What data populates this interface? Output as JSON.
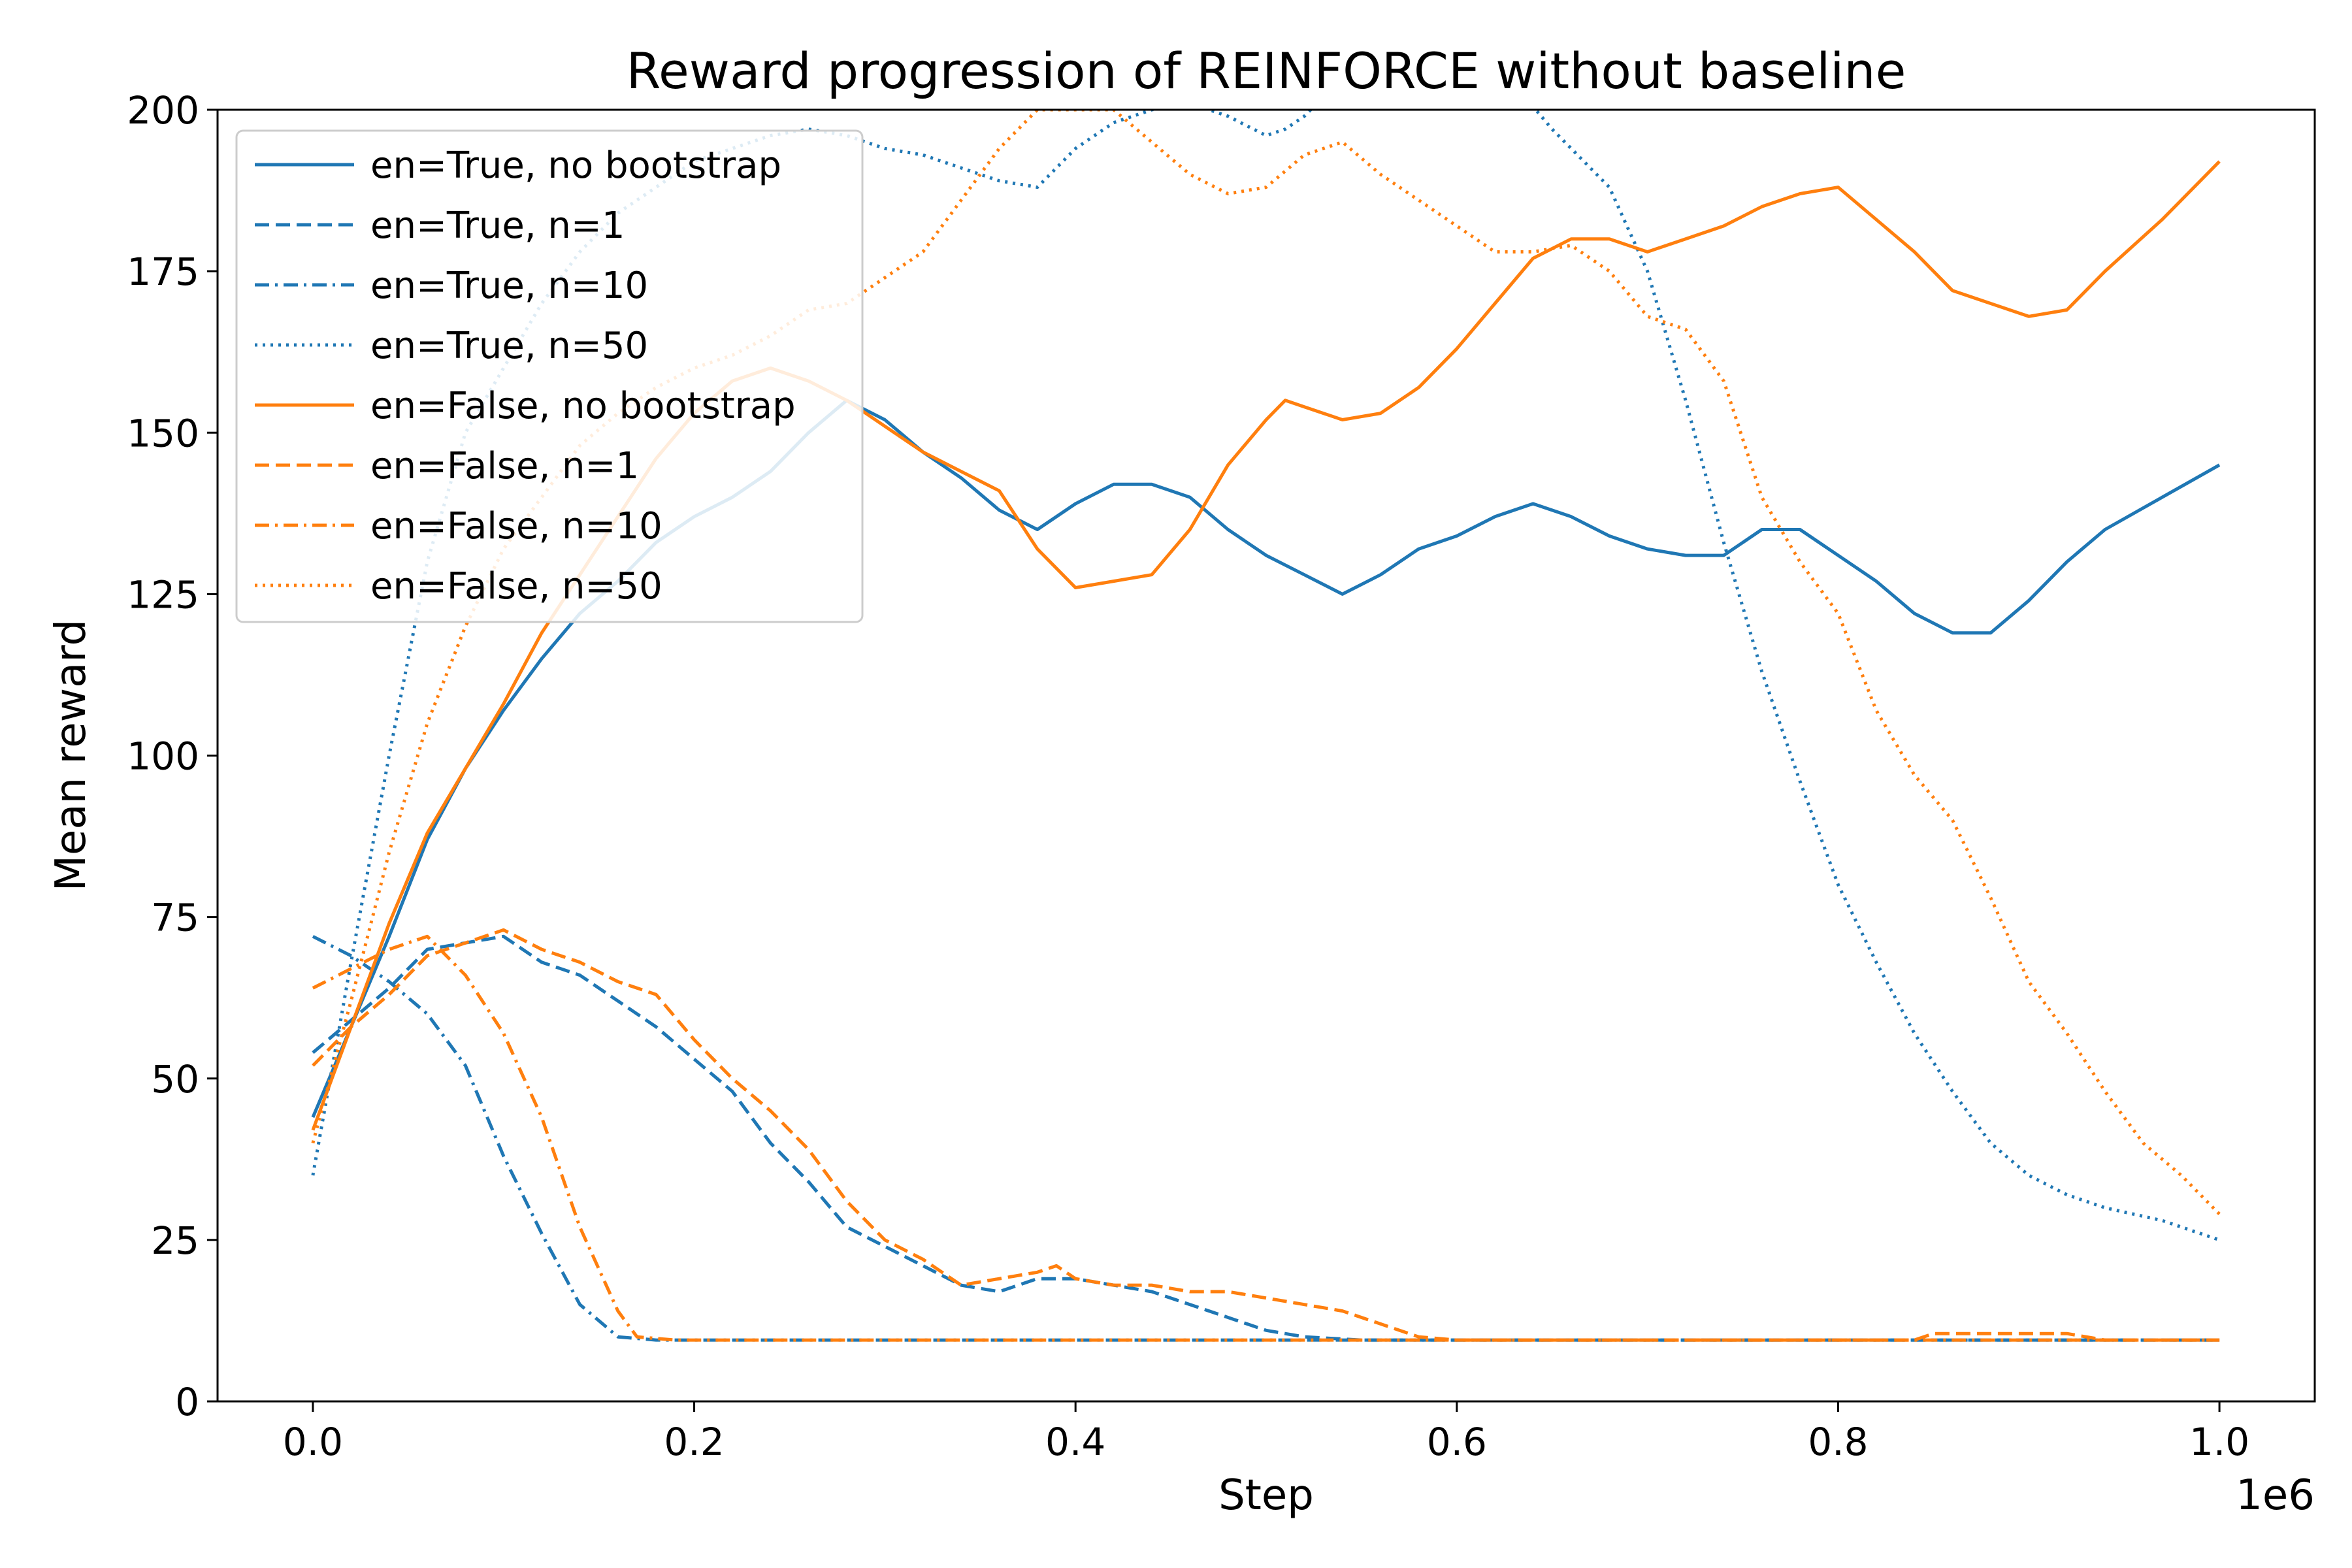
{
  "chart_data": {
    "type": "line",
    "title": "Reward progression of REINFORCE without baseline",
    "xlabel": "Step",
    "ylabel": "Mean reward",
    "x_offset_text": "1e6",
    "xlim": [
      -0.05,
      1.05
    ],
    "ylim": [
      0,
      200
    ],
    "xticks": [
      0.0,
      0.2,
      0.4,
      0.6,
      0.8,
      1.0
    ],
    "xtick_labels": [
      "0.0",
      "0.2",
      "0.4",
      "0.6",
      "0.8",
      "1.0"
    ],
    "yticks": [
      0,
      25,
      50,
      75,
      100,
      125,
      150,
      175,
      200
    ],
    "ytick_labels": [
      "0",
      "25",
      "50",
      "75",
      "100",
      "125",
      "150",
      "175",
      "200"
    ],
    "grid": false,
    "legend_position": "upper-left",
    "colors": {
      "blue": "#1f77b4",
      "orange": "#ff7f0e"
    },
    "series": [
      {
        "name": "en=True, no bootstrap",
        "color": "#1f77b4",
        "dash": "solid",
        "points": [
          [
            0.0,
            44
          ],
          [
            0.02,
            58
          ],
          [
            0.04,
            72
          ],
          [
            0.06,
            87
          ],
          [
            0.08,
            98
          ],
          [
            0.1,
            107
          ],
          [
            0.12,
            115
          ],
          [
            0.14,
            122
          ],
          [
            0.16,
            127
          ],
          [
            0.18,
            133
          ],
          [
            0.2,
            137
          ],
          [
            0.22,
            140
          ],
          [
            0.24,
            144
          ],
          [
            0.26,
            150
          ],
          [
            0.28,
            155
          ],
          [
            0.3,
            152
          ],
          [
            0.32,
            147
          ],
          [
            0.34,
            143
          ],
          [
            0.36,
            138
          ],
          [
            0.38,
            135
          ],
          [
            0.4,
            139
          ],
          [
            0.42,
            142
          ],
          [
            0.44,
            142
          ],
          [
            0.46,
            140
          ],
          [
            0.48,
            135
          ],
          [
            0.5,
            131
          ],
          [
            0.52,
            128
          ],
          [
            0.54,
            125
          ],
          [
            0.56,
            128
          ],
          [
            0.58,
            132
          ],
          [
            0.6,
            134
          ],
          [
            0.62,
            137
          ],
          [
            0.64,
            139
          ],
          [
            0.66,
            137
          ],
          [
            0.68,
            134
          ],
          [
            0.7,
            132
          ],
          [
            0.72,
            131
          ],
          [
            0.74,
            131
          ],
          [
            0.76,
            135
          ],
          [
            0.78,
            135
          ],
          [
            0.8,
            131
          ],
          [
            0.82,
            127
          ],
          [
            0.84,
            122
          ],
          [
            0.86,
            119
          ],
          [
            0.88,
            119
          ],
          [
            0.9,
            124
          ],
          [
            0.92,
            130
          ],
          [
            0.94,
            135
          ],
          [
            0.97,
            140
          ],
          [
            1.0,
            145
          ]
        ]
      },
      {
        "name": "en=True, n=1",
        "color": "#1f77b4",
        "dash": "dashed",
        "points": [
          [
            0.0,
            54
          ],
          [
            0.02,
            59
          ],
          [
            0.04,
            64
          ],
          [
            0.06,
            70
          ],
          [
            0.08,
            71
          ],
          [
            0.1,
            72
          ],
          [
            0.12,
            68
          ],
          [
            0.14,
            66
          ],
          [
            0.16,
            62
          ],
          [
            0.18,
            58
          ],
          [
            0.2,
            53
          ],
          [
            0.22,
            48
          ],
          [
            0.24,
            40
          ],
          [
            0.26,
            34
          ],
          [
            0.28,
            27
          ],
          [
            0.3,
            24
          ],
          [
            0.32,
            21
          ],
          [
            0.34,
            18
          ],
          [
            0.36,
            17
          ],
          [
            0.38,
            19
          ],
          [
            0.4,
            19
          ],
          [
            0.42,
            18
          ],
          [
            0.44,
            17
          ],
          [
            0.46,
            15
          ],
          [
            0.48,
            13
          ],
          [
            0.5,
            11
          ],
          [
            0.52,
            10
          ],
          [
            0.55,
            9.5
          ],
          [
            0.6,
            9.5
          ],
          [
            0.8,
            9.5
          ],
          [
            1.0,
            9.5
          ]
        ]
      },
      {
        "name": "en=True, n=10",
        "color": "#1f77b4",
        "dash": "dashdot",
        "points": [
          [
            0.0,
            72
          ],
          [
            0.02,
            69
          ],
          [
            0.04,
            65
          ],
          [
            0.06,
            60
          ],
          [
            0.08,
            52
          ],
          [
            0.1,
            38
          ],
          [
            0.12,
            26
          ],
          [
            0.14,
            15
          ],
          [
            0.16,
            10
          ],
          [
            0.18,
            9.5
          ],
          [
            0.3,
            9.5
          ],
          [
            0.5,
            9.5
          ],
          [
            0.8,
            9.5
          ],
          [
            1.0,
            9.5
          ]
        ]
      },
      {
        "name": "en=True, n=50",
        "color": "#1f77b4",
        "dash": "dotted",
        "points": [
          [
            0.0,
            35
          ],
          [
            0.02,
            68
          ],
          [
            0.04,
            100
          ],
          [
            0.06,
            130
          ],
          [
            0.08,
            150
          ],
          [
            0.1,
            160
          ],
          [
            0.12,
            170
          ],
          [
            0.14,
            178
          ],
          [
            0.16,
            184
          ],
          [
            0.18,
            188
          ],
          [
            0.2,
            192
          ],
          [
            0.22,
            194
          ],
          [
            0.24,
            196
          ],
          [
            0.26,
            197
          ],
          [
            0.28,
            196
          ],
          [
            0.3,
            194
          ],
          [
            0.32,
            193
          ],
          [
            0.34,
            191
          ],
          [
            0.36,
            189
          ],
          [
            0.38,
            188
          ],
          [
            0.4,
            194
          ],
          [
            0.42,
            198
          ],
          [
            0.44,
            200
          ],
          [
            0.46,
            201
          ],
          [
            0.48,
            199
          ],
          [
            0.5,
            196
          ],
          [
            0.51,
            197
          ],
          [
            0.52,
            199
          ],
          [
            0.53,
            202
          ],
          [
            0.6,
            206
          ],
          [
            0.63,
            204
          ],
          [
            0.65,
            197
          ],
          [
            0.68,
            188
          ],
          [
            0.7,
            175
          ],
          [
            0.72,
            155
          ],
          [
            0.74,
            133
          ],
          [
            0.76,
            113
          ],
          [
            0.78,
            96
          ],
          [
            0.8,
            80
          ],
          [
            0.82,
            68
          ],
          [
            0.84,
            57
          ],
          [
            0.86,
            48
          ],
          [
            0.88,
            40
          ],
          [
            0.9,
            35
          ],
          [
            0.92,
            32
          ],
          [
            0.94,
            30
          ],
          [
            0.97,
            28
          ],
          [
            1.0,
            25
          ]
        ]
      },
      {
        "name": "en=False, no bootstrap",
        "color": "#ff7f0e",
        "dash": "solid",
        "points": [
          [
            0.0,
            42
          ],
          [
            0.02,
            58
          ],
          [
            0.04,
            74
          ],
          [
            0.06,
            88
          ],
          [
            0.08,
            98
          ],
          [
            0.1,
            108
          ],
          [
            0.12,
            119
          ],
          [
            0.14,
            128
          ],
          [
            0.16,
            137
          ],
          [
            0.18,
            146
          ],
          [
            0.2,
            153
          ],
          [
            0.22,
            158
          ],
          [
            0.24,
            160
          ],
          [
            0.26,
            158
          ],
          [
            0.28,
            155
          ],
          [
            0.3,
            151
          ],
          [
            0.32,
            147
          ],
          [
            0.34,
            144
          ],
          [
            0.36,
            141
          ],
          [
            0.38,
            132
          ],
          [
            0.4,
            126
          ],
          [
            0.42,
            127
          ],
          [
            0.44,
            128
          ],
          [
            0.46,
            135
          ],
          [
            0.48,
            145
          ],
          [
            0.5,
            152
          ],
          [
            0.51,
            155
          ],
          [
            0.52,
            154
          ],
          [
            0.54,
            152
          ],
          [
            0.56,
            153
          ],
          [
            0.58,
            157
          ],
          [
            0.6,
            163
          ],
          [
            0.62,
            170
          ],
          [
            0.64,
            177
          ],
          [
            0.66,
            180
          ],
          [
            0.68,
            180
          ],
          [
            0.7,
            178
          ],
          [
            0.72,
            180
          ],
          [
            0.74,
            182
          ],
          [
            0.76,
            185
          ],
          [
            0.78,
            187
          ],
          [
            0.8,
            188
          ],
          [
            0.82,
            183
          ],
          [
            0.84,
            178
          ],
          [
            0.86,
            172
          ],
          [
            0.88,
            170
          ],
          [
            0.9,
            168
          ],
          [
            0.92,
            169
          ],
          [
            0.94,
            175
          ],
          [
            0.97,
            183
          ],
          [
            1.0,
            192
          ]
        ]
      },
      {
        "name": "en=False, n=1",
        "color": "#ff7f0e",
        "dash": "dashed",
        "points": [
          [
            0.0,
            52
          ],
          [
            0.02,
            58
          ],
          [
            0.04,
            63
          ],
          [
            0.06,
            69
          ],
          [
            0.08,
            71
          ],
          [
            0.1,
            73
          ],
          [
            0.12,
            70
          ],
          [
            0.14,
            68
          ],
          [
            0.16,
            65
          ],
          [
            0.18,
            63
          ],
          [
            0.2,
            56
          ],
          [
            0.22,
            50
          ],
          [
            0.24,
            45
          ],
          [
            0.26,
            39
          ],
          [
            0.28,
            31
          ],
          [
            0.3,
            25
          ],
          [
            0.32,
            22
          ],
          [
            0.34,
            18
          ],
          [
            0.36,
            19
          ],
          [
            0.38,
            20
          ],
          [
            0.39,
            21
          ],
          [
            0.4,
            19
          ],
          [
            0.42,
            18
          ],
          [
            0.44,
            18
          ],
          [
            0.46,
            17
          ],
          [
            0.48,
            17
          ],
          [
            0.5,
            16
          ],
          [
            0.52,
            15
          ],
          [
            0.54,
            14
          ],
          [
            0.56,
            12
          ],
          [
            0.58,
            10
          ],
          [
            0.6,
            9.5
          ],
          [
            0.7,
            9.5
          ],
          [
            0.84,
            9.5
          ],
          [
            0.85,
            10.5
          ],
          [
            0.88,
            10.5
          ],
          [
            0.92,
            10.5
          ],
          [
            0.94,
            9.5
          ],
          [
            1.0,
            9.5
          ]
        ]
      },
      {
        "name": "en=False, n=10",
        "color": "#ff7f0e",
        "dash": "dashdot",
        "points": [
          [
            0.0,
            64
          ],
          [
            0.02,
            67
          ],
          [
            0.04,
            70
          ],
          [
            0.06,
            72
          ],
          [
            0.08,
            66
          ],
          [
            0.1,
            57
          ],
          [
            0.12,
            44
          ],
          [
            0.14,
            27
          ],
          [
            0.16,
            14
          ],
          [
            0.17,
            10
          ],
          [
            0.19,
            9.5
          ],
          [
            0.3,
            9.5
          ],
          [
            0.5,
            9.5
          ],
          [
            0.8,
            9.5
          ],
          [
            1.0,
            9.5
          ]
        ]
      },
      {
        "name": "en=False, n=50",
        "color": "#ff7f0e",
        "dash": "dotted",
        "points": [
          [
            0.0,
            40
          ],
          [
            0.02,
            62
          ],
          [
            0.04,
            85
          ],
          [
            0.06,
            105
          ],
          [
            0.08,
            120
          ],
          [
            0.1,
            132
          ],
          [
            0.12,
            140
          ],
          [
            0.14,
            148
          ],
          [
            0.16,
            153
          ],
          [
            0.18,
            157
          ],
          [
            0.2,
            160
          ],
          [
            0.22,
            162
          ],
          [
            0.24,
            165
          ],
          [
            0.26,
            169
          ],
          [
            0.28,
            170
          ],
          [
            0.3,
            174
          ],
          [
            0.32,
            178
          ],
          [
            0.34,
            186
          ],
          [
            0.36,
            194
          ],
          [
            0.38,
            200
          ],
          [
            0.4,
            200
          ],
          [
            0.42,
            200
          ],
          [
            0.44,
            195
          ],
          [
            0.46,
            190
          ],
          [
            0.48,
            187
          ],
          [
            0.5,
            188
          ],
          [
            0.52,
            193
          ],
          [
            0.54,
            195
          ],
          [
            0.56,
            190
          ],
          [
            0.58,
            186
          ],
          [
            0.6,
            182
          ],
          [
            0.62,
            178
          ],
          [
            0.64,
            178
          ],
          [
            0.66,
            179
          ],
          [
            0.68,
            175
          ],
          [
            0.7,
            168
          ],
          [
            0.72,
            166
          ],
          [
            0.74,
            158
          ],
          [
            0.76,
            140
          ],
          [
            0.78,
            130
          ],
          [
            0.8,
            122
          ],
          [
            0.82,
            107
          ],
          [
            0.84,
            97
          ],
          [
            0.86,
            90
          ],
          [
            0.88,
            78
          ],
          [
            0.9,
            65
          ],
          [
            0.92,
            57
          ],
          [
            0.94,
            48
          ],
          [
            0.96,
            40
          ],
          [
            0.98,
            35
          ],
          [
            1.0,
            29
          ]
        ]
      }
    ]
  }
}
